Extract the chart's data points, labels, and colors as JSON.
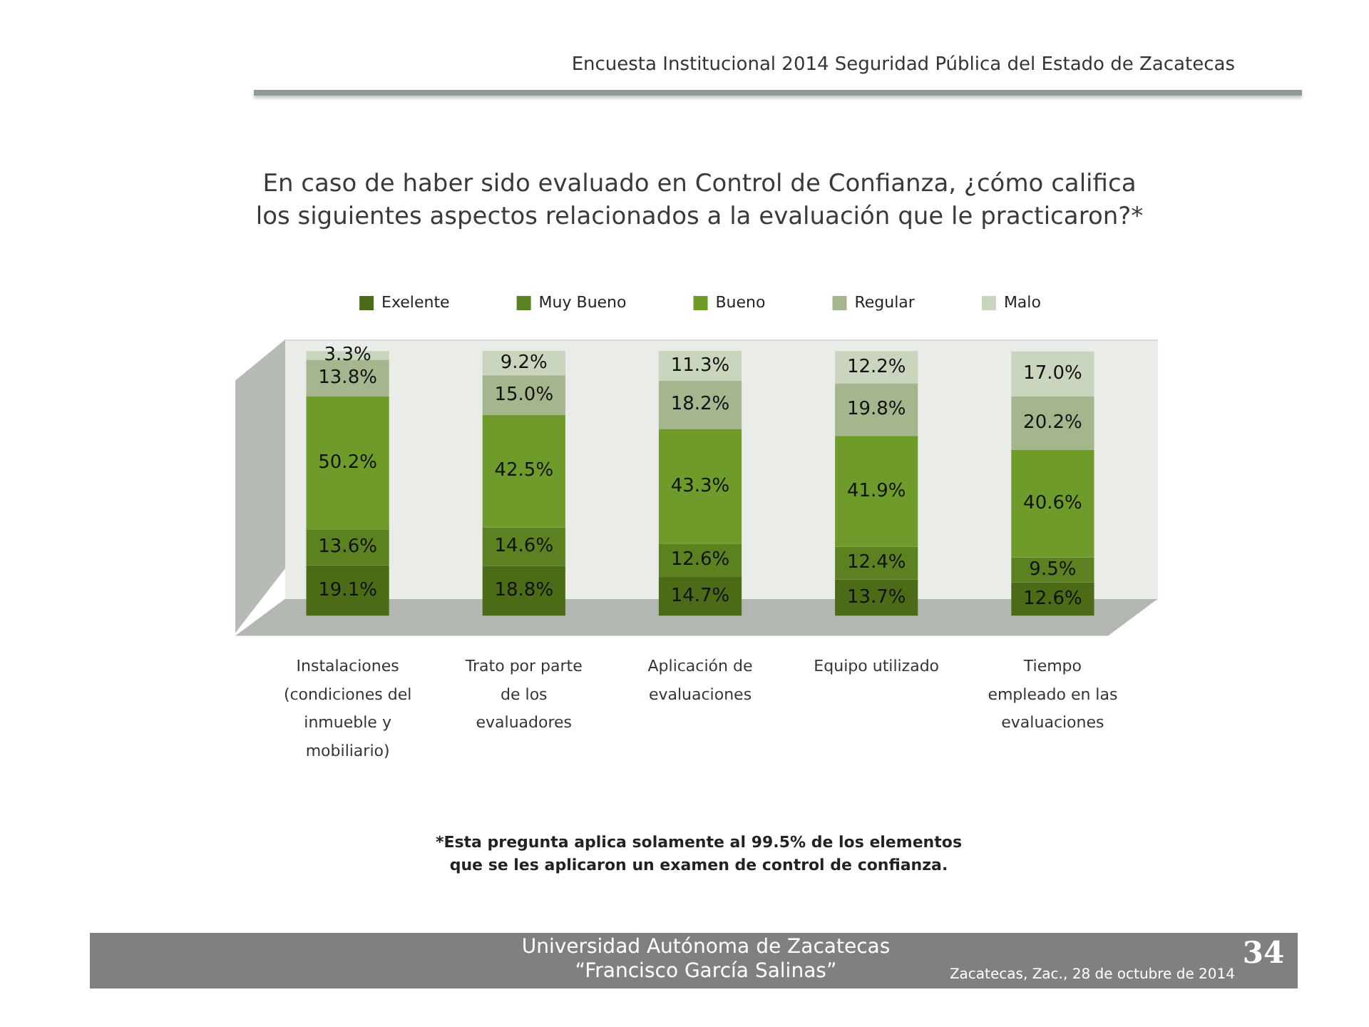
{
  "chart_data": {
    "type": "bar",
    "title": "En caso de haber sido evaluado en Control de Confianza, ¿cómo califica los siguientes aspectos relacionados a la evaluación que le practicaron?*",
    "categories": [
      "Instalaciones (condiciones del inmueble y mobiliario)",
      "Trato por parte de los evaluadores",
      "Aplicación de evaluaciones",
      "Equipo utilizado",
      "Tiempo empleado en las evaluaciones"
    ],
    "stacked": true,
    "legend": "top",
    "series": [
      {
        "name": "Exelente",
        "color": "#4b6b16",
        "values": [
          19.1,
          18.8,
          14.7,
          13.7,
          12.6
        ],
        "value_labels": [
          "19.1%",
          "18.8%",
          "14.7%",
          "13.7%",
          "12.6%"
        ]
      },
      {
        "name": "Muy Bueno",
        "color": "#5c8120",
        "values": [
          13.6,
          14.6,
          12.6,
          12.4,
          9.5
        ],
        "value_labels": [
          "13.6%",
          "14.6%",
          "12.6%",
          "12.4%",
          "9.5%"
        ]
      },
      {
        "name": "Bueno",
        "color": "#6f9b2a",
        "values": [
          50.2,
          42.5,
          43.3,
          41.9,
          40.6
        ],
        "value_labels": [
          "50.2%",
          "42.5%",
          "43.3%",
          "41.9%",
          "40.6%"
        ]
      },
      {
        "name": "Regular",
        "color": "#a5b68e",
        "values": [
          13.8,
          15.0,
          18.2,
          19.8,
          20.2
        ],
        "value_labels": [
          "13.8%",
          "15.0%",
          "18.2%",
          "19.8%",
          "20.2%"
        ]
      },
      {
        "name": "Malo",
        "color": "#cad5be",
        "values": [
          3.3,
          9.2,
          11.3,
          12.2,
          17.0
        ],
        "value_labels": [
          "3.3%",
          "9.2%",
          "11.3%",
          "12.2%",
          "17.0%"
        ]
      }
    ],
    "annotations": [
      "Encuesta Institucional 2014 Seguridad Pública del Estado de Zacatecas",
      "*Esta pregunta aplica solamente al 99.5% de los elementos que se les aplicaron un examen de control de confianza.",
      "Universidad Autónoma de Zacatecas",
      "“Francisco García Salinas”",
      "Zacatecas, Zac., 28 de octubre de 2014",
      "34"
    ]
  }
}
